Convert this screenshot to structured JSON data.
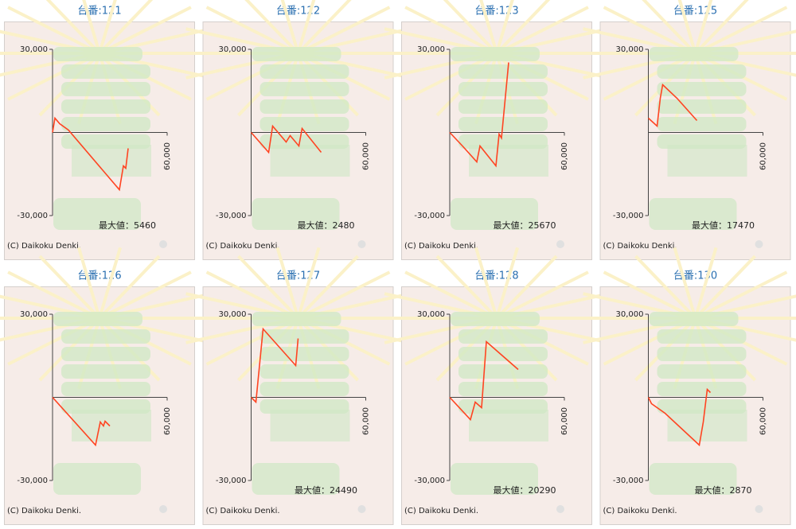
{
  "chart_data": [
    {
      "type": "line",
      "title": "台番:121",
      "color": "#ff4422",
      "xlim": [
        0,
        60000
      ],
      "ylim": [
        -30000,
        30000
      ],
      "xticks": [
        {
          "value": 60000,
          "label": "60,000"
        }
      ],
      "yticks": [
        {
          "value": 30000,
          "label": "30,000"
        },
        {
          "value": -30000,
          "label": "-30,000"
        }
      ],
      "x": [
        0,
        1250,
        3750,
        8330,
        35000,
        37080,
        38330,
        39580
      ],
      "values": [
        0,
        5170,
        3160,
        860,
        -20660,
        -12050,
        -12920,
        -5740
      ],
      "annotation": "最大値：5460",
      "credit": "(C) Daikoku Denki."
    },
    {
      "type": "line",
      "title": "台番:122",
      "color": "#ff4422",
      "xlim": [
        0,
        60000
      ],
      "ylim": [
        -30000,
        30000
      ],
      "xticks": [
        {
          "value": 60000,
          "label": "60,000"
        }
      ],
      "yticks": [
        {
          "value": 30000,
          "label": "30,000"
        },
        {
          "value": -30000,
          "label": "-30,000"
        }
      ],
      "x": [
        0,
        9170,
        11250,
        18330,
        20420,
        25000,
        26670,
        36670
      ],
      "values": [
        0,
        -7180,
        2300,
        -3440,
        -1150,
        -4880,
        1440,
        -7180
      ],
      "annotation": "最大値：2480",
      "credit": "(C) Daikoku Denki."
    },
    {
      "type": "line",
      "title": "台番:123",
      "color": "#ff4422",
      "xlim": [
        0,
        60000
      ],
      "ylim": [
        -30000,
        30000
      ],
      "xticks": [
        {
          "value": 60000,
          "label": "60,000"
        }
      ],
      "yticks": [
        {
          "value": 30000,
          "label": "30,000"
        },
        {
          "value": -30000,
          "label": "-30,000"
        }
      ],
      "x": [
        0,
        6670,
        14170,
        15830,
        24170,
        25830,
        27080,
        30830
      ],
      "values": [
        0,
        -4880,
        -10620,
        -4880,
        -12050,
        -570,
        -2010,
        25260
      ],
      "annotation": "最大値：25670",
      "credit": "(C) Daikoku Denki."
    },
    {
      "type": "line",
      "title": "台番:125",
      "color": "#ff4422",
      "xlim": [
        0,
        60000
      ],
      "ylim": [
        -30000,
        30000
      ],
      "xticks": [
        {
          "value": 60000,
          "label": "60,000"
        }
      ],
      "yticks": [
        {
          "value": 30000,
          "label": "30,000"
        },
        {
          "value": -30000,
          "label": "-30,000"
        }
      ],
      "x": [
        0,
        4580,
        6250,
        7500,
        15000,
        25420
      ],
      "values": [
        5170,
        2300,
        12340,
        17220,
        12340,
        4300
      ],
      "annotation": "最大値：17470",
      "credit": "(C) Daikoku Denki."
    },
    {
      "type": "line",
      "title": "台番:126",
      "color": "#ff4422",
      "xlim": [
        0,
        60000
      ],
      "ylim": [
        -30000,
        30000
      ],
      "xticks": [
        {
          "value": 60000,
          "label": "60,000"
        }
      ],
      "yticks": [
        {
          "value": 30000,
          "label": "30,000"
        },
        {
          "value": -30000,
          "label": "-30,000"
        }
      ],
      "x": [
        0,
        22500,
        25000,
        26670,
        27500,
        30000
      ],
      "values": [
        0,
        -17220,
        -8900,
        -10330,
        -8610,
        -10330
      ],
      "credit": "(C) Daikoku Denki."
    },
    {
      "type": "line",
      "title": "台番:127",
      "color": "#ff4422",
      "xlim": [
        0,
        60000
      ],
      "ylim": [
        -30000,
        30000
      ],
      "xticks": [
        {
          "value": 60000,
          "label": "60,000"
        }
      ],
      "yticks": [
        {
          "value": 30000,
          "label": "30,000"
        },
        {
          "value": -30000,
          "label": "-30,000"
        }
      ],
      "x": [
        0,
        2500,
        6250,
        23330,
        24580
      ],
      "values": [
        0,
        -1720,
        24680,
        11480,
        21240
      ],
      "annotation": "最大値：24490",
      "credit": "(C) Daikoku Denki."
    },
    {
      "type": "line",
      "title": "台番:128",
      "color": "#ff4422",
      "xlim": [
        0,
        60000
      ],
      "ylim": [
        -30000,
        30000
      ],
      "xticks": [
        {
          "value": 60000,
          "label": "60,000"
        }
      ],
      "yticks": [
        {
          "value": 30000,
          "label": "30,000"
        },
        {
          "value": -30000,
          "label": "-30,000"
        }
      ],
      "x": [
        0,
        10830,
        13330,
        16670,
        19170,
        35830
      ],
      "values": [
        0,
        -8040,
        -1720,
        -3730,
        20090,
        10050
      ],
      "annotation": "最大値：20290",
      "credit": "(C) Daikoku Denki."
    },
    {
      "type": "line",
      "title": "台番:130",
      "color": "#ff4422",
      "xlim": [
        0,
        60000
      ],
      "ylim": [
        -30000,
        30000
      ],
      "xticks": [
        {
          "value": 60000,
          "label": "60,000"
        }
      ],
      "yticks": [
        {
          "value": 30000,
          "label": "30,000"
        },
        {
          "value": -30000,
          "label": "-30,000"
        }
      ],
      "x": [
        0,
        1670,
        8750,
        26670,
        28750,
        30830,
        32500
      ],
      "values": [
        0,
        -2300,
        -5740,
        -17220,
        -8900,
        2870,
        1720
      ],
      "annotation": "最大値：2870",
      "credit": "(C) Daikoku Denki."
    }
  ]
}
